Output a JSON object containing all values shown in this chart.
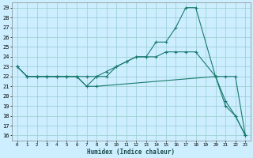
{
  "xlabel": "Humidex (Indice chaleur)",
  "bg_color": "#cceeff",
  "grid_color": "#99cccc",
  "line_color": "#1a7a6e",
  "xlim": [
    -0.5,
    23.5
  ],
  "ylim": [
    15.5,
    29.5
  ],
  "xticks": [
    0,
    1,
    2,
    3,
    4,
    5,
    6,
    7,
    8,
    9,
    10,
    11,
    12,
    13,
    14,
    15,
    16,
    17,
    18,
    19,
    20,
    21,
    22,
    23
  ],
  "yticks": [
    16,
    17,
    18,
    19,
    20,
    21,
    22,
    23,
    24,
    25,
    26,
    27,
    28,
    29
  ],
  "series": [
    {
      "x": [
        0,
        1,
        2,
        3,
        4,
        5,
        6,
        7,
        8,
        9,
        10,
        11,
        12,
        13,
        14,
        15,
        16,
        17,
        18,
        20,
        21,
        22,
        23
      ],
      "y": [
        23,
        22,
        22,
        22,
        22,
        22,
        22,
        21,
        22,
        22,
        23,
        23.5,
        24,
        24,
        25.5,
        25.5,
        27,
        29,
        29,
        22,
        19,
        18,
        16
      ]
    },
    {
      "x": [
        0,
        1,
        2,
        3,
        4,
        5,
        6,
        7,
        8,
        9,
        10,
        11,
        12,
        13,
        14,
        15,
        16,
        17,
        18,
        20,
        21,
        22,
        23
      ],
      "y": [
        23,
        22,
        22,
        22,
        22,
        22,
        22,
        22,
        22,
        22.5,
        23,
        23.5,
        24,
        24,
        24,
        24.5,
        24.5,
        24.5,
        24.5,
        22,
        22,
        22,
        16
      ]
    },
    {
      "x": [
        0,
        1,
        2,
        3,
        4,
        5,
        6,
        7,
        8,
        20,
        21,
        22,
        23
      ],
      "y": [
        23,
        22,
        22,
        22,
        22,
        22,
        22,
        21,
        21,
        22,
        19.5,
        18,
        16
      ]
    }
  ]
}
